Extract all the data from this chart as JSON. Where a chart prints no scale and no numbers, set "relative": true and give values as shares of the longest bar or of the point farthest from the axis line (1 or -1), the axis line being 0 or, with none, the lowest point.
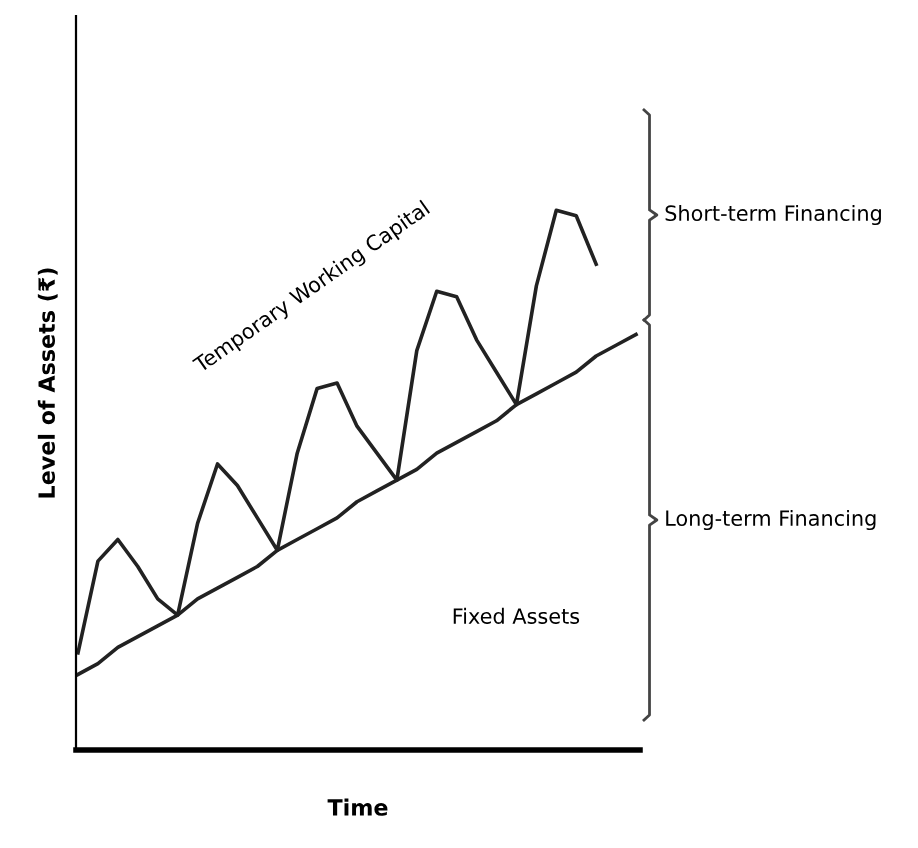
{
  "chart_data": {
    "type": "line",
    "relative": true,
    "xlabel": "Time",
    "ylabel": "Level of Assets (₹)",
    "categories": [
      null,
      null,
      null,
      null,
      null,
      null,
      null,
      null,
      null,
      null,
      null,
      null,
      null,
      null,
      null,
      null,
      null,
      null,
      null,
      null,
      null,
      null,
      null,
      null,
      null,
      null,
      null,
      null,
      null
    ],
    "series": [
      {
        "color": "#222222",
        "values": [
          0.14,
          0.16,
          0.19,
          0.21,
          0.23,
          0.25,
          0.28,
          0.3,
          0.32,
          0.34,
          0.37,
          0.39,
          0.41,
          0.43,
          0.46,
          0.48,
          0.5,
          0.52,
          0.55,
          0.57,
          0.59,
          0.61,
          0.64,
          0.66,
          0.68,
          0.7,
          0.73,
          0.75,
          0.77
        ]
      },
      {
        "color": "#222222",
        "values": [
          0.18,
          0.35,
          0.39,
          0.34,
          0.28,
          0.25,
          0.42,
          0.53,
          0.49,
          0.43,
          0.37,
          0.55,
          0.67,
          0.68,
          0.6,
          0.55,
          0.5,
          0.74,
          0.85,
          0.84,
          0.76,
          0.7,
          0.64,
          0.86,
          1.0,
          0.99,
          0.9,
          null,
          null
        ]
      }
    ],
    "annotations": [
      "Temporary Working Capital",
      "Fixed Assets",
      "Short-term Financing",
      "Long-term Financing"
    ],
    "grid": false,
    "legend": false,
    "marker": "none",
    "line_style": "solid"
  }
}
